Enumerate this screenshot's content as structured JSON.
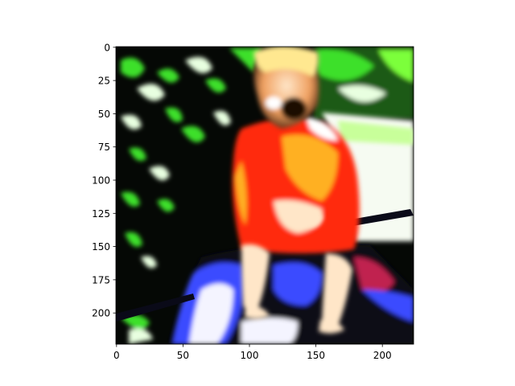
{
  "chart_data": {
    "type": "heatmap",
    "title": "",
    "xlabel": "",
    "ylabel": "",
    "xlim": [
      0,
      224
    ],
    "ylim": [
      224,
      0
    ],
    "x_ticks": [
      0,
      50,
      100,
      150,
      200
    ],
    "y_ticks": [
      0,
      25,
      50,
      75,
      100,
      125,
      150,
      175,
      200
    ],
    "grid": false,
    "legend": "none",
    "image": {
      "description": "high-contrast photo: child in a red and orange shirt sitting on a toy vehicle, green foliage behind",
      "colors": {
        "foliage_dark": "#050805",
        "foliage_green": "#3ee02a",
        "foliage_light": "#e8ffe0",
        "shirt_red": "#ff2a10",
        "shirt_orange": "#ffb020",
        "skin": "#ffe6c8",
        "hair": "#ffe890",
        "vehicle_dark": "#0a0a18",
        "vehicle_blue": "#3a4cff",
        "vehicle_white": "#f4f4ff",
        "ground_pale": "#f6fbf2"
      }
    }
  }
}
